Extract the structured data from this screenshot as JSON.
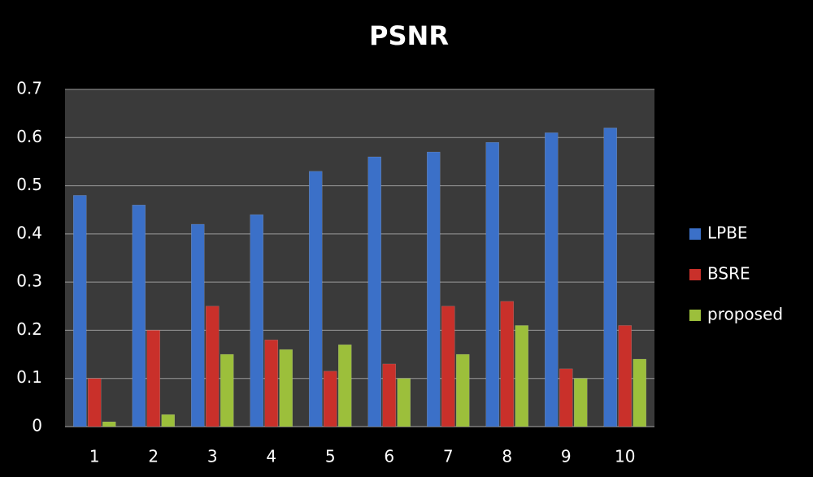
{
  "chart_data": {
    "type": "bar",
    "title": "PSNR",
    "categories": [
      "1",
      "2",
      "3",
      "4",
      "5",
      "6",
      "7",
      "8",
      "9",
      "10"
    ],
    "series": [
      {
        "name": "LPBE",
        "color": "#3b70c8",
        "values": [
          0.48,
          0.46,
          0.42,
          0.44,
          0.53,
          0.56,
          0.57,
          0.59,
          0.61,
          0.62
        ]
      },
      {
        "name": "BSRE",
        "color": "#c9302a",
        "values": [
          0.1,
          0.2,
          0.25,
          0.18,
          0.115,
          0.13,
          0.25,
          0.26,
          0.12,
          0.21
        ]
      },
      {
        "name": "proposed",
        "color": "#9cbf3b",
        "values": [
          0.01,
          0.025,
          0.15,
          0.16,
          0.17,
          0.1,
          0.15,
          0.21,
          0.1,
          0.14
        ]
      }
    ],
    "ylim": [
      0,
      0.7
    ],
    "yticks": [
      0,
      0.1,
      0.2,
      0.3,
      0.4,
      0.5,
      0.6,
      0.7
    ],
    "grid": true,
    "legend": "right"
  }
}
